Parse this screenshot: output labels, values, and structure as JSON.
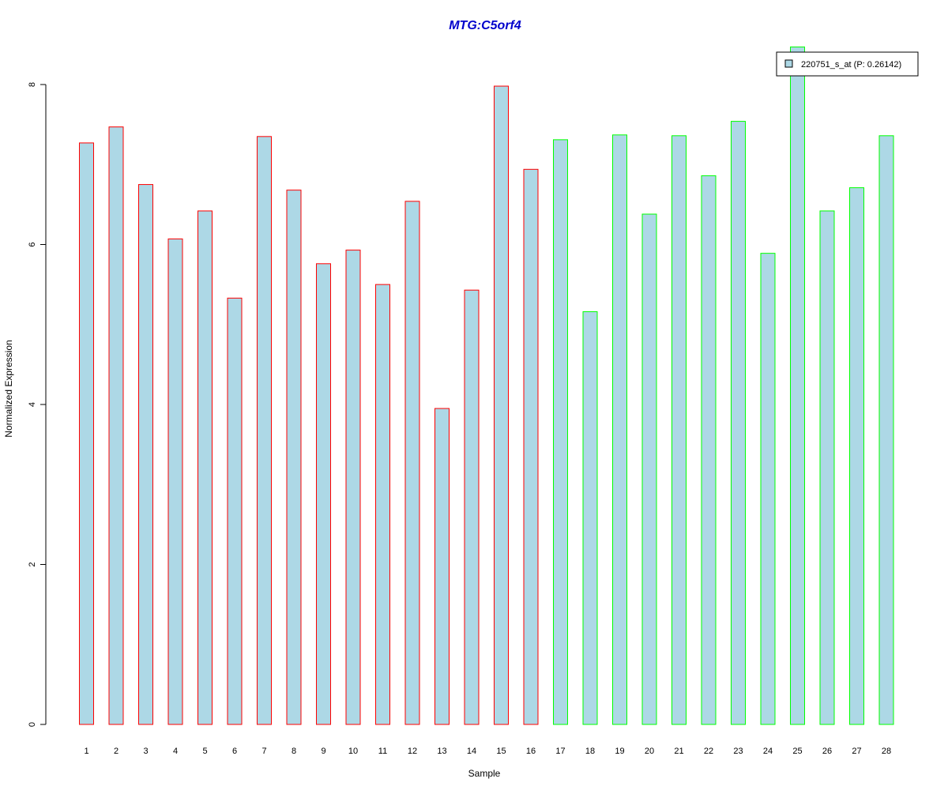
{
  "chart_data": {
    "type": "bar",
    "title": "MTG:C5orf4",
    "xlabel": "Sample",
    "ylabel": "Normalized Expression",
    "ylim": [
      0,
      8.5
    ],
    "yticks": [
      0,
      2,
      4,
      6,
      8
    ],
    "categories": [
      "1",
      "2",
      "3",
      "4",
      "5",
      "6",
      "7",
      "8",
      "9",
      "10",
      "11",
      "12",
      "13",
      "14",
      "15",
      "16",
      "17",
      "18",
      "19",
      "20",
      "21",
      "22",
      "23",
      "24",
      "25",
      "26",
      "27",
      "28"
    ],
    "series": [
      {
        "name": "220751_s_at (P: 0.26142)",
        "fill": "#add8e6",
        "values": [
          7.27,
          7.47,
          6.75,
          6.07,
          6.42,
          5.33,
          7.35,
          6.68,
          5.76,
          5.93,
          5.5,
          6.54,
          3.95,
          5.43,
          7.98,
          6.94,
          7.31,
          5.16,
          7.37,
          6.38,
          7.36,
          6.86,
          7.54,
          5.89,
          8.47,
          6.42,
          6.71,
          7.36
        ]
      }
    ],
    "groups": [
      {
        "from": 1,
        "to": 16,
        "border_color": "#ff0000"
      },
      {
        "from": 17,
        "to": 28,
        "border_color": "#00ff00"
      }
    ],
    "legend": {
      "position": "top-right",
      "label": "220751_s_at (P: 0.26142)"
    },
    "grid": false
  }
}
